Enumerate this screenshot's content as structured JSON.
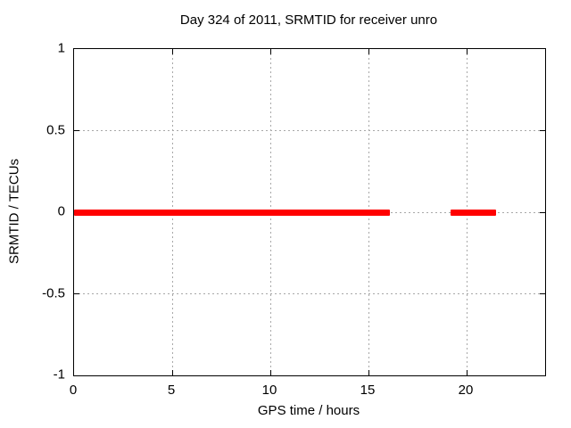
{
  "chart_data": {
    "type": "line",
    "title": "Day 324 of 2011, SRMTID for receiver unro",
    "xlabel": "GPS time / hours",
    "ylabel": "SRMTID / TECUs",
    "xlim": [
      0,
      24
    ],
    "ylim": [
      -1,
      1
    ],
    "x_ticks": {
      "values": [
        0,
        5,
        10,
        15,
        20
      ],
      "labels": [
        "0",
        "5",
        "10",
        "15",
        "20"
      ]
    },
    "y_ticks": {
      "values": [
        1,
        0.5,
        0,
        -0.5,
        -1
      ],
      "labels": [
        "1",
        "0.5",
        "0",
        "-0.5",
        "-1"
      ]
    },
    "grid": true,
    "legend_position": "none",
    "colors": {
      "line": "#ff0000",
      "grid": "#a8a8a8",
      "axis": "#000000",
      "background": "#ffffff",
      "text": "#000000"
    },
    "series": [
      {
        "name": "SRMTID",
        "color": "#ff0000",
        "style": "thick-horizontal-segments",
        "segments": [
          {
            "x_start": 0.0,
            "x_end": 16.1,
            "y": 0
          },
          {
            "x_start": 19.2,
            "x_end": 21.5,
            "y": 0
          }
        ]
      }
    ]
  }
}
